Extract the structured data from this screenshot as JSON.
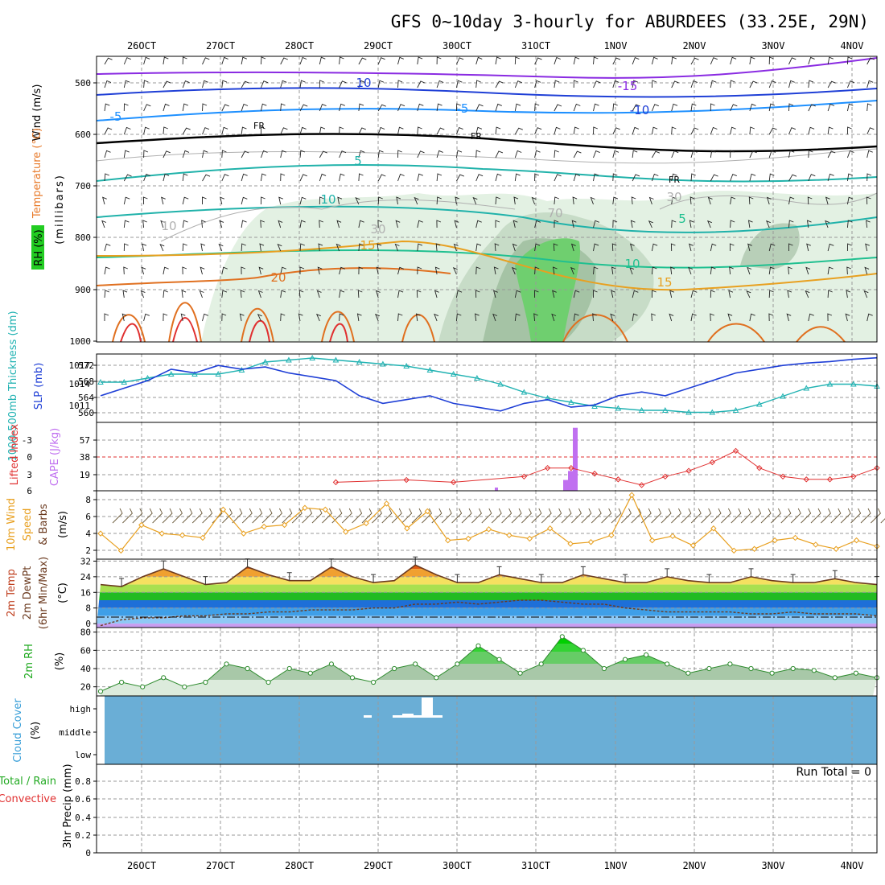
{
  "title": "GFS 0~10day 3-hourly for ABURDEES (33.25E, 29N)",
  "dates": [
    "26OCT",
    "27OCT",
    "28OCT",
    "29OCT",
    "30OCT",
    "31OCT",
    "1NOV",
    "2NOV",
    "3NOV",
    "4NOV"
  ],
  "colors": {
    "purple": "#8a2be2",
    "blue": "#1f3fd6",
    "lightblue": "#1e90ff",
    "teal": "#20b2aa",
    "orange": "#e8a020",
    "darkorange": "#e07020",
    "red": "#e03030",
    "slp": "#1f3fd6",
    "thick": "#20b2b2",
    "cape": "#c070f0",
    "li": "#e03030",
    "wind": "#e8a020",
    "cloud": "#6aaed6",
    "rh": "#22cc22"
  },
  "panels": {
    "upper": {
      "label_wind": "Wind (m/s)",
      "label_temp": "Temperature (°C)",
      "label_rh": "RH (%)",
      "label_mb": "(millibars)",
      "yticks": [
        "500",
        "600",
        "700",
        "800",
        "900",
        "1000"
      ],
      "contour_labels": [
        "10",
        "-15",
        "-10",
        "-5",
        "-5",
        "FR",
        "FR",
        "FR",
        "5",
        "10",
        "5",
        "15",
        "10",
        "20",
        "15",
        "10",
        "70",
        "30",
        "30"
      ]
    },
    "slp": {
      "label_thick": "1000-500mb Thickness (dm)",
      "label_slp": "SLP (mb)",
      "left_ticks": [
        "572",
        "568",
        "564",
        "560"
      ],
      "right_ticks": [
        "1017",
        "1014",
        "1011"
      ]
    },
    "cape": {
      "label_li": "Lifted Index",
      "label_cape": "CAPE (J/kg)",
      "left_ticks": [
        "-3",
        "0",
        "3",
        "6"
      ],
      "right_ticks": [
        "57",
        "38",
        "19"
      ]
    },
    "wind10": {
      "label_a": "10m Wind",
      "label_b": "Speed",
      "label_c": "& Barbs",
      "label_units": "(m/s)",
      "yticks": [
        "8",
        "6",
        "4",
        "2"
      ]
    },
    "temp2m": {
      "label_a": "2m Temp",
      "label_b": "2m DewPt",
      "label_c": "(6hr Min/Max)",
      "label_units": "(°C)",
      "yticks": [
        "32",
        "24",
        "16",
        "8",
        "0"
      ]
    },
    "rh2m": {
      "label_a": "2m RH",
      "label_units": "(%)",
      "yticks": [
        "80",
        "60",
        "40",
        "20"
      ]
    },
    "cloud": {
      "label_a": "Cloud Cover",
      "label_units": "(%)",
      "yticks": [
        "high",
        "middle",
        "low"
      ]
    },
    "precip": {
      "label_a": "Total / Rain",
      "label_b": "Convective",
      "label_c": "3hr Precip (mm)",
      "run_total": "Run Total = 0",
      "yticks": [
        "0.8",
        "0.6",
        "0.4",
        "0.2",
        "0"
      ]
    }
  },
  "chart_data": [
    {
      "type": "line",
      "name": "SLP (mb)",
      "ylim": [
        1009,
        1018
      ],
      "values": [
        1012.5,
        1013.5,
        1014.5,
        1016,
        1015.5,
        1016.5,
        1016,
        1016.3,
        1015.5,
        1015,
        1014.5,
        1012.5,
        1011.5,
        1012,
        1012.5,
        1011.5,
        1011,
        1010.5,
        1011.5,
        1012,
        1011,
        1011.3,
        1012.5,
        1013,
        1012.5,
        1013.5,
        1014.5,
        1015.5,
        1016,
        1016.5,
        1016.8,
        1017,
        1017.3,
        1017.5
      ]
    },
    {
      "type": "line",
      "name": "1000-500mb Thickness (dm)",
      "ylim": [
        557,
        574
      ],
      "values": [
        567,
        567,
        568,
        569,
        569,
        569,
        570,
        572,
        572.5,
        573,
        572.5,
        572,
        571.5,
        571,
        570,
        569,
        568,
        566.5,
        564.5,
        563,
        562,
        561,
        560.5,
        560,
        560,
        559.5,
        559.5,
        560,
        561.5,
        563.5,
        565.5,
        566.5,
        566.5,
        566
      ]
    },
    {
      "type": "bar",
      "name": "CAPE (J/kg)",
      "categories": [
        "31OCT 12Z",
        "31OCT 15Z",
        "31OCT 18Z"
      ],
      "values": [
        12,
        22,
        70
      ]
    },
    {
      "type": "line",
      "name": "Lifted Index",
      "ylim": [
        -6,
        6
      ],
      "values": [
        6,
        6,
        6,
        6,
        6,
        6,
        6,
        6,
        6,
        6,
        4.5,
        6,
        6,
        4.1,
        6,
        4.5,
        6,
        6,
        3.5,
        2,
        2,
        3,
        4,
        5,
        3.5,
        2.5,
        1,
        -1,
        2,
        3.5,
        4,
        4,
        3.5,
        2
      ]
    },
    {
      "type": "line",
      "name": "10m Wind Speed (m/s)",
      "ylim": [
        1,
        9
      ],
      "values": [
        4,
        2,
        5,
        4,
        3.8,
        3.5,
        6.8,
        4,
        4.8,
        5,
        7,
        6.8,
        4.2,
        5.2,
        7.5,
        4.6,
        6.6,
        3.2,
        3.4,
        4.5,
        3.8,
        3.4,
        4.6,
        2.8,
        3,
        3.8,
        8.5,
        3.2,
        3.7,
        2.6,
        4.6,
        2,
        2.2,
        3.2,
        3.5,
        2.7,
        2.2,
        3.2,
        2.5
      ]
    },
    {
      "type": "area",
      "name": "2m Temp (°C)",
      "ylim": [
        -2,
        33
      ],
      "values": [
        20,
        19,
        24,
        28,
        24,
        20,
        21,
        29,
        25,
        22,
        22,
        29,
        24,
        21,
        22,
        30,
        25,
        21,
        21,
        25,
        23,
        21,
        21,
        25,
        23,
        21,
        21,
        24,
        22,
        21,
        21,
        24,
        22,
        21,
        21,
        23,
        21,
        20
      ]
    },
    {
      "type": "line",
      "name": "2m DewPt (°C)",
      "ylim": [
        -2,
        33
      ],
      "values": [
        -1,
        2,
        3,
        3,
        4,
        4,
        5,
        5,
        6,
        6,
        7,
        7,
        7,
        8,
        8,
        10,
        10,
        11,
        10,
        11,
        12,
        12,
        11,
        10,
        10,
        8,
        7,
        6,
        6,
        6,
        6,
        5,
        5,
        6,
        5,
        5,
        5,
        4
      ]
    },
    {
      "type": "area",
      "name": "2m RH (%)",
      "ylim": [
        10,
        85
      ],
      "values": [
        15,
        25,
        20,
        30,
        20,
        25,
        45,
        40,
        25,
        40,
        35,
        45,
        30,
        25,
        40,
        45,
        30,
        45,
        65,
        50,
        35,
        45,
        75,
        60,
        40,
        50,
        55,
        45,
        35,
        40,
        45,
        40,
        35,
        40,
        38,
        30,
        35,
        30
      ]
    },
    {
      "type": "bar",
      "name": "3hr Precip (mm)",
      "ylim": [
        0,
        1
      ],
      "values": [
        0
      ]
    }
  ]
}
